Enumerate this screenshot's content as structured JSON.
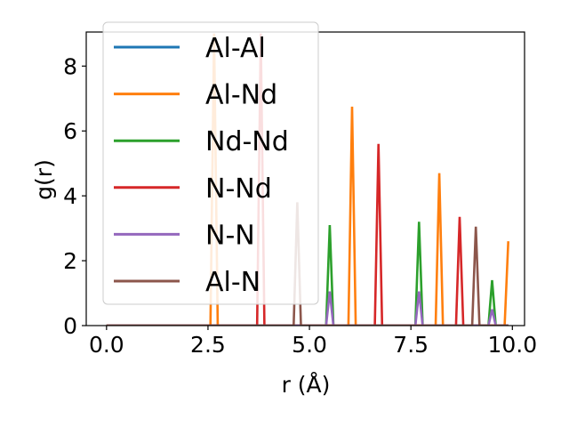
{
  "chart_data": {
    "type": "line",
    "xlabel": "r (Å)",
    "ylabel": "g(r)",
    "xlim": [
      -0.5,
      10.3
    ],
    "ylim": [
      0,
      9.05
    ],
    "xticks": [
      0.0,
      2.5,
      5.0,
      7.5,
      10.0
    ],
    "xtick_labels": [
      "0.0",
      "2.5",
      "5.0",
      "7.5",
      "10.0"
    ],
    "yticks": [
      0,
      2,
      4,
      6,
      8
    ],
    "ytick_labels": [
      "0",
      "2",
      "4",
      "6",
      "8"
    ],
    "grid": false,
    "legend_position": "top-left",
    "series": [
      {
        "name": "Al-Al",
        "color": "#1f77b4",
        "baseline_range": [
          0,
          9.9
        ],
        "peaks": []
      },
      {
        "name": "Al-Nd",
        "color": "#ff7f0e",
        "baseline_range": [
          0,
          9.9
        ],
        "peaks": [
          {
            "x": 2.65,
            "y": 9.0
          },
          {
            "x": 6.05,
            "y": 6.75
          },
          {
            "x": 8.2,
            "y": 4.7
          },
          {
            "x": 9.9,
            "y": 2.6
          }
        ]
      },
      {
        "name": "Nd-Nd",
        "color": "#2ca02c",
        "baseline_range": [
          0,
          9.9
        ],
        "peaks": [
          {
            "x": 5.5,
            "y": 3.1
          },
          {
            "x": 7.7,
            "y": 3.2
          },
          {
            "x": 9.5,
            "y": 1.4
          }
        ]
      },
      {
        "name": "N-Nd",
        "color": "#d62728",
        "baseline_range": [
          0,
          9.9
        ],
        "peaks": [
          {
            "x": 3.8,
            "y": 9.0
          },
          {
            "x": 6.7,
            "y": 5.6
          },
          {
            "x": 8.7,
            "y": 3.35
          }
        ]
      },
      {
        "name": "N-N",
        "color": "#9467bd",
        "baseline_range": [
          0,
          9.9
        ],
        "peaks": [
          {
            "x": 5.5,
            "y": 1.05
          },
          {
            "x": 7.7,
            "y": 1.05
          },
          {
            "x": 9.5,
            "y": 0.5
          }
        ]
      },
      {
        "name": "Al-N",
        "color": "#8c564b",
        "baseline_range": [
          0,
          9.9
        ],
        "peaks": [
          {
            "x": 4.7,
            "y": 3.8
          },
          {
            "x": 9.1,
            "y": 3.05
          }
        ]
      }
    ]
  }
}
